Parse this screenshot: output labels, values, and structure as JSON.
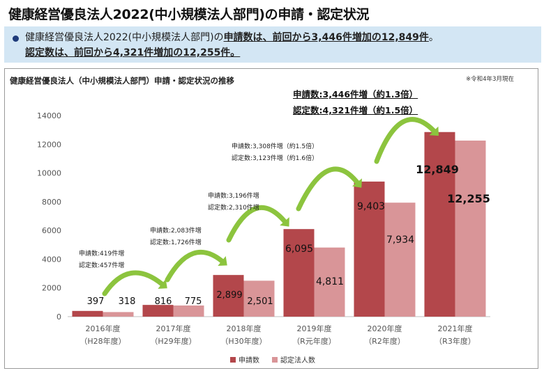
{
  "page_title": "健康経営優良法人2022(中小規模法人部門)の申請・認定状況",
  "summary": {
    "line1_prefix": "健康経営優良法人2022(中小規模法人部門)の",
    "line1_emphasis": "申請数は、前回から3,446件増加の12,849件",
    "line1_suffix": "。",
    "line2": "認定数は、前回から4,321件増加の12,255件。"
  },
  "panel": {
    "note": "※令和4年3月現在",
    "total_application": "申請数:3,446件増（約1.3倍）",
    "total_certified": "認定数:4,321件増（約1.5倍）"
  },
  "colors": {
    "application": "#b3474b",
    "certified": "#d99598",
    "arrow": "#8cc43e",
    "banner": "#d3e6f4"
  },
  "chart_data": {
    "type": "bar",
    "title": "健康経営優良法人（中小規模法人部門）申請・認定状況の推移",
    "categories": [
      "2016年度",
      "2017年度",
      "2018年度",
      "2019年度",
      "2020年度",
      "2021年度"
    ],
    "category_sub": [
      "（H28年度）",
      "（H29年度）",
      "（H30年度）",
      "（R元年度）",
      "（R2年度）",
      "（R3年度）"
    ],
    "series": [
      {
        "name": "申請数",
        "values": [
          397,
          816,
          2899,
          6095,
          9403,
          12849
        ]
      },
      {
        "name": "認定法人数",
        "values": [
          318,
          775,
          2501,
          4811,
          7934,
          12255
        ]
      }
    ],
    "value_labels": [
      [
        "397",
        "816",
        "2,899",
        "6,095",
        "9,403",
        "12,849"
      ],
      [
        "318",
        "775",
        "2,501",
        "4,811",
        "7,934",
        "12,255"
      ]
    ],
    "yticks": [
      0,
      2000,
      4000,
      6000,
      8000,
      10000,
      12000,
      14000
    ],
    "ylim": [
      0,
      14000
    ],
    "legend_position": "bottom",
    "annotations": [
      {
        "from": 0,
        "to": 1,
        "lines": [
          "申請数:419件増",
          "認定数:457件増"
        ]
      },
      {
        "from": 1,
        "to": 2,
        "lines": [
          "申請数:2,083件増",
          "認定数:1,726件増"
        ]
      },
      {
        "from": 2,
        "to": 3,
        "lines": [
          "申請数:3,196件増",
          "認定数:2,310件増"
        ]
      },
      {
        "from": 3,
        "to": 4,
        "lines": [
          "申請数:3,308件増（約1.5倍）",
          "認定数:3,123件増（約1.6倍）"
        ]
      },
      {
        "from": 4,
        "to": 5,
        "lines": []
      }
    ]
  }
}
